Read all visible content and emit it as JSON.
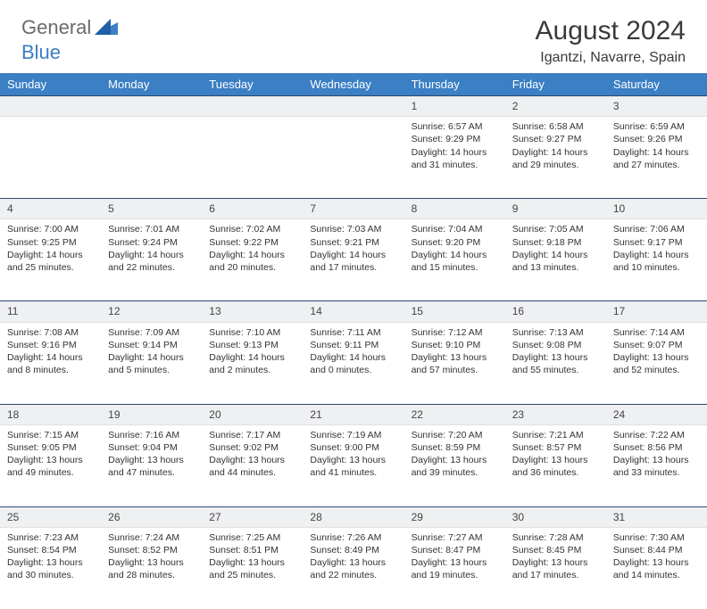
{
  "brand": {
    "part1": "General",
    "part2": "Blue"
  },
  "title": "August 2024",
  "location": "Igantzi, Navarre, Spain",
  "colors": {
    "header_bg": "#3b7fc4",
    "header_text": "#ffffff",
    "daynum_bg": "#eef0f2",
    "daynum_border_top": "#2a4a6a",
    "body_text": "#333333",
    "brand_gray": "#6b6b6b",
    "brand_blue": "#3b7fc4"
  },
  "weekdays": [
    "Sunday",
    "Monday",
    "Tuesday",
    "Wednesday",
    "Thursday",
    "Friday",
    "Saturday"
  ],
  "weeks": [
    {
      "nums": [
        "",
        "",
        "",
        "",
        "1",
        "2",
        "3"
      ],
      "cells": [
        null,
        null,
        null,
        null,
        {
          "sunrise": "Sunrise: 6:57 AM",
          "sunset": "Sunset: 9:29 PM",
          "day1": "Daylight: 14 hours",
          "day2": "and 31 minutes."
        },
        {
          "sunrise": "Sunrise: 6:58 AM",
          "sunset": "Sunset: 9:27 PM",
          "day1": "Daylight: 14 hours",
          "day2": "and 29 minutes."
        },
        {
          "sunrise": "Sunrise: 6:59 AM",
          "sunset": "Sunset: 9:26 PM",
          "day1": "Daylight: 14 hours",
          "day2": "and 27 minutes."
        }
      ]
    },
    {
      "nums": [
        "4",
        "5",
        "6",
        "7",
        "8",
        "9",
        "10"
      ],
      "cells": [
        {
          "sunrise": "Sunrise: 7:00 AM",
          "sunset": "Sunset: 9:25 PM",
          "day1": "Daylight: 14 hours",
          "day2": "and 25 minutes."
        },
        {
          "sunrise": "Sunrise: 7:01 AM",
          "sunset": "Sunset: 9:24 PM",
          "day1": "Daylight: 14 hours",
          "day2": "and 22 minutes."
        },
        {
          "sunrise": "Sunrise: 7:02 AM",
          "sunset": "Sunset: 9:22 PM",
          "day1": "Daylight: 14 hours",
          "day2": "and 20 minutes."
        },
        {
          "sunrise": "Sunrise: 7:03 AM",
          "sunset": "Sunset: 9:21 PM",
          "day1": "Daylight: 14 hours",
          "day2": "and 17 minutes."
        },
        {
          "sunrise": "Sunrise: 7:04 AM",
          "sunset": "Sunset: 9:20 PM",
          "day1": "Daylight: 14 hours",
          "day2": "and 15 minutes."
        },
        {
          "sunrise": "Sunrise: 7:05 AM",
          "sunset": "Sunset: 9:18 PM",
          "day1": "Daylight: 14 hours",
          "day2": "and 13 minutes."
        },
        {
          "sunrise": "Sunrise: 7:06 AM",
          "sunset": "Sunset: 9:17 PM",
          "day1": "Daylight: 14 hours",
          "day2": "and 10 minutes."
        }
      ]
    },
    {
      "nums": [
        "11",
        "12",
        "13",
        "14",
        "15",
        "16",
        "17"
      ],
      "cells": [
        {
          "sunrise": "Sunrise: 7:08 AM",
          "sunset": "Sunset: 9:16 PM",
          "day1": "Daylight: 14 hours",
          "day2": "and 8 minutes."
        },
        {
          "sunrise": "Sunrise: 7:09 AM",
          "sunset": "Sunset: 9:14 PM",
          "day1": "Daylight: 14 hours",
          "day2": "and 5 minutes."
        },
        {
          "sunrise": "Sunrise: 7:10 AM",
          "sunset": "Sunset: 9:13 PM",
          "day1": "Daylight: 14 hours",
          "day2": "and 2 minutes."
        },
        {
          "sunrise": "Sunrise: 7:11 AM",
          "sunset": "Sunset: 9:11 PM",
          "day1": "Daylight: 14 hours",
          "day2": "and 0 minutes."
        },
        {
          "sunrise": "Sunrise: 7:12 AM",
          "sunset": "Sunset: 9:10 PM",
          "day1": "Daylight: 13 hours",
          "day2": "and 57 minutes."
        },
        {
          "sunrise": "Sunrise: 7:13 AM",
          "sunset": "Sunset: 9:08 PM",
          "day1": "Daylight: 13 hours",
          "day2": "and 55 minutes."
        },
        {
          "sunrise": "Sunrise: 7:14 AM",
          "sunset": "Sunset: 9:07 PM",
          "day1": "Daylight: 13 hours",
          "day2": "and 52 minutes."
        }
      ]
    },
    {
      "nums": [
        "18",
        "19",
        "20",
        "21",
        "22",
        "23",
        "24"
      ],
      "cells": [
        {
          "sunrise": "Sunrise: 7:15 AM",
          "sunset": "Sunset: 9:05 PM",
          "day1": "Daylight: 13 hours",
          "day2": "and 49 minutes."
        },
        {
          "sunrise": "Sunrise: 7:16 AM",
          "sunset": "Sunset: 9:04 PM",
          "day1": "Daylight: 13 hours",
          "day2": "and 47 minutes."
        },
        {
          "sunrise": "Sunrise: 7:17 AM",
          "sunset": "Sunset: 9:02 PM",
          "day1": "Daylight: 13 hours",
          "day2": "and 44 minutes."
        },
        {
          "sunrise": "Sunrise: 7:19 AM",
          "sunset": "Sunset: 9:00 PM",
          "day1": "Daylight: 13 hours",
          "day2": "and 41 minutes."
        },
        {
          "sunrise": "Sunrise: 7:20 AM",
          "sunset": "Sunset: 8:59 PM",
          "day1": "Daylight: 13 hours",
          "day2": "and 39 minutes."
        },
        {
          "sunrise": "Sunrise: 7:21 AM",
          "sunset": "Sunset: 8:57 PM",
          "day1": "Daylight: 13 hours",
          "day2": "and 36 minutes."
        },
        {
          "sunrise": "Sunrise: 7:22 AM",
          "sunset": "Sunset: 8:56 PM",
          "day1": "Daylight: 13 hours",
          "day2": "and 33 minutes."
        }
      ]
    },
    {
      "nums": [
        "25",
        "26",
        "27",
        "28",
        "29",
        "30",
        "31"
      ],
      "cells": [
        {
          "sunrise": "Sunrise: 7:23 AM",
          "sunset": "Sunset: 8:54 PM",
          "day1": "Daylight: 13 hours",
          "day2": "and 30 minutes."
        },
        {
          "sunrise": "Sunrise: 7:24 AM",
          "sunset": "Sunset: 8:52 PM",
          "day1": "Daylight: 13 hours",
          "day2": "and 28 minutes."
        },
        {
          "sunrise": "Sunrise: 7:25 AM",
          "sunset": "Sunset: 8:51 PM",
          "day1": "Daylight: 13 hours",
          "day2": "and 25 minutes."
        },
        {
          "sunrise": "Sunrise: 7:26 AM",
          "sunset": "Sunset: 8:49 PM",
          "day1": "Daylight: 13 hours",
          "day2": "and 22 minutes."
        },
        {
          "sunrise": "Sunrise: 7:27 AM",
          "sunset": "Sunset: 8:47 PM",
          "day1": "Daylight: 13 hours",
          "day2": "and 19 minutes."
        },
        {
          "sunrise": "Sunrise: 7:28 AM",
          "sunset": "Sunset: 8:45 PM",
          "day1": "Daylight: 13 hours",
          "day2": "and 17 minutes."
        },
        {
          "sunrise": "Sunrise: 7:30 AM",
          "sunset": "Sunset: 8:44 PM",
          "day1": "Daylight: 13 hours",
          "day2": "and 14 minutes."
        }
      ]
    }
  ]
}
